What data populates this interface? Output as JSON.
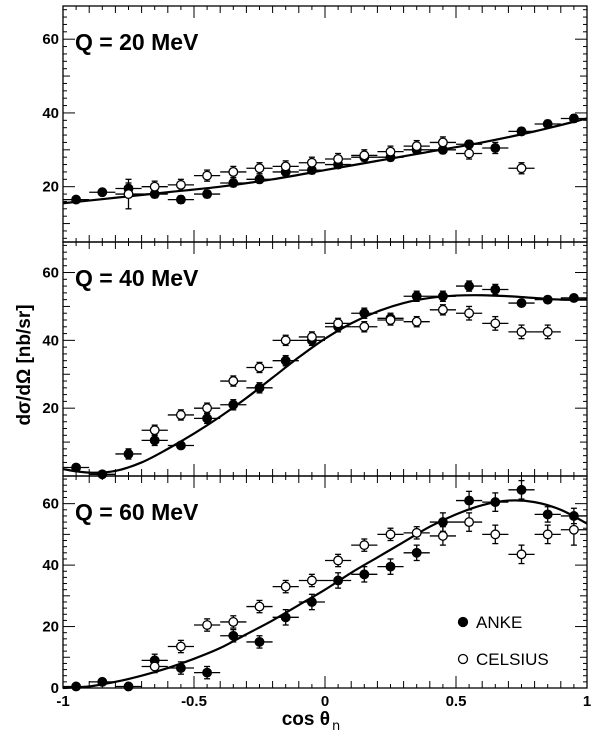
{
  "chart_data": {
    "type": "scatter",
    "xlabel": "cos θ",
    "xlabel_sub": "n",
    "ylabel": "dσ/dΩ [nb/sr]",
    "xlim": [
      -1,
      1
    ],
    "x_ticks": [
      -1,
      -0.5,
      0,
      0.5,
      1
    ],
    "x_tick_labels": [
      "-1",
      "-0.5",
      "0",
      "0.5",
      "1"
    ],
    "legend": {
      "position": "bottom-right",
      "entries": [
        "ANKE",
        "CELSIUS"
      ]
    },
    "grid": false,
    "panels": [
      {
        "label": "Q = 20 MeV",
        "ylim": [
          5,
          69
        ],
        "y_ticks": [
          20,
          40,
          60
        ],
        "series": [
          {
            "name": "ANKE",
            "marker": "filled-circle",
            "x": [
              -0.95,
              -0.85,
              -0.75,
              -0.65,
              -0.55,
              -0.45,
              -0.35,
              -0.25,
              -0.15,
              -0.05,
              0.05,
              0.15,
              0.25,
              0.35,
              0.45,
              0.55,
              0.65,
              0.75,
              0.85,
              0.95
            ],
            "y": [
              16.5,
              18.5,
              19.5,
              18,
              16.5,
              18,
              21,
              22,
              24,
              24.5,
              26,
              28,
              28,
              30,
              30,
              31.5,
              30.5,
              35,
              37,
              38.5
            ],
            "yerr": [
              0.8,
              0.8,
              1.5,
              1,
              1,
              1,
              1,
              1,
              1,
              1,
              1,
              1,
              1,
              1,
              1,
              1,
              1.5,
              1,
              1,
              1
            ]
          },
          {
            "name": "CELSIUS",
            "marker": "open-circle",
            "x": [
              -0.75,
              -0.65,
              -0.55,
              -0.45,
              -0.35,
              -0.25,
              -0.15,
              -0.05,
              0.05,
              0.15,
              0.25,
              0.35,
              0.45,
              0.55,
              0.75
            ],
            "y": [
              18,
              20,
              20.5,
              23,
              24,
              25,
              25.5,
              26.5,
              27.5,
              28.5,
              29.5,
              31,
              32,
              29,
              25
            ],
            "yerr": [
              4,
              1.5,
              1.5,
              1.5,
              1.5,
              1.5,
              1.5,
              1.5,
              1.5,
              1.5,
              1.5,
              1.5,
              1.5,
              1.5,
              1.5
            ]
          }
        ],
        "fit": {
          "x": [
            -1,
            -0.8,
            -0.6,
            -0.4,
            -0.2,
            0,
            0.2,
            0.4,
            0.6,
            0.8,
            1
          ],
          "y": [
            15.5,
            17,
            18.5,
            20,
            22,
            24.5,
            27,
            29.5,
            32,
            35,
            38.5
          ]
        }
      },
      {
        "label": "Q = 40 MeV",
        "ylim": [
          0,
          69
        ],
        "y_ticks": [
          20,
          40,
          60
        ],
        "series": [
          {
            "name": "ANKE",
            "marker": "filled-circle",
            "x": [
              -0.95,
              -0.85,
              -0.75,
              -0.65,
              -0.55,
              -0.45,
              -0.35,
              -0.25,
              -0.15,
              -0.05,
              0.05,
              0.15,
              0.25,
              0.35,
              0.45,
              0.55,
              0.65,
              0.75,
              0.85,
              0.95
            ],
            "y": [
              2.5,
              0.5,
              6.5,
              10.5,
              9,
              17,
              21,
              26,
              34,
              40,
              44,
              48,
              46.5,
              53,
              53,
              56,
              55,
              51,
              52,
              52.5
            ],
            "yerr": [
              0.8,
              0.8,
              1.5,
              1.5,
              1,
              1.5,
              1.5,
              1.5,
              1.5,
              1.5,
              1.5,
              1.5,
              1.5,
              1.5,
              1.5,
              1.5,
              1.5,
              1,
              1,
              1
            ]
          },
          {
            "name": "CELSIUS",
            "marker": "open-circle",
            "x": [
              -0.65,
              -0.55,
              -0.45,
              -0.35,
              -0.25,
              -0.15,
              -0.05,
              0.05,
              0.15,
              0.25,
              0.35,
              0.45,
              0.55,
              0.65,
              0.75,
              0.85
            ],
            "y": [
              13.5,
              18,
              20,
              28,
              32,
              40,
              41,
              45,
              44,
              46,
              45.5,
              49,
              48,
              45,
              42.5,
              42.5
            ],
            "yerr": [
              1.5,
              1.5,
              1.5,
              1.5,
              1.5,
              1.5,
              1.5,
              1.5,
              1.5,
              1.5,
              1.5,
              1.5,
              2,
              2,
              2,
              2
            ]
          }
        ],
        "fit": {
          "x": [
            -1,
            -0.9,
            -0.8,
            -0.7,
            -0.6,
            -0.5,
            -0.4,
            -0.3,
            -0.2,
            -0.1,
            0,
            0.1,
            0.2,
            0.3,
            0.4,
            0.5,
            0.6,
            0.7,
            0.8,
            0.9,
            1
          ],
          "y": [
            2,
            1,
            1.5,
            4,
            8,
            12.5,
            17.5,
            23,
            29,
            35,
            40.5,
            45,
            48.5,
            51,
            52.5,
            53.2,
            53.3,
            53,
            52.5,
            52,
            52
          ]
        }
      },
      {
        "label": "Q = 60 MeV",
        "ylim": [
          0,
          69
        ],
        "y_ticks": [
          0,
          20,
          40,
          60
        ],
        "series": [
          {
            "name": "ANKE",
            "marker": "filled-circle",
            "x": [
              -0.95,
              -0.85,
              -0.75,
              -0.65,
              -0.55,
              -0.45,
              -0.35,
              -0.25,
              -0.15,
              -0.05,
              0.05,
              0.15,
              0.25,
              0.35,
              0.45,
              0.55,
              0.65,
              0.75,
              0.85,
              0.95
            ],
            "y": [
              0.5,
              2,
              0.5,
              9,
              6.5,
              5,
              17,
              15,
              23,
              28,
              35,
              37,
              39.5,
              44,
              54,
              61,
              60.5,
              64.5,
              56.5,
              56
            ],
            "yerr": [
              0.5,
              0.8,
              0.8,
              2,
              2,
              2,
              2,
              2,
              2.5,
              2.5,
              2.5,
              2.5,
              2.5,
              2.5,
              3,
              3,
              3,
              3,
              2.5,
              2.5
            ]
          },
          {
            "name": "CELSIUS",
            "marker": "open-circle",
            "x": [
              -0.65,
              -0.55,
              -0.45,
              -0.35,
              -0.25,
              -0.15,
              -0.05,
              0.05,
              0.15,
              0.25,
              0.35,
              0.45,
              0.55,
              0.65,
              0.75,
              0.85,
              0.95
            ],
            "y": [
              7,
              13.5,
              20.5,
              21.5,
              26.5,
              33,
              35,
              41.5,
              46.5,
              50,
              50.5,
              49.5,
              54,
              50,
              43.5,
              50,
              51.5
            ],
            "yerr": [
              2,
              2,
              2,
              2,
              2,
              2,
              2,
              2,
              2,
              2,
              2,
              3,
              3,
              3,
              3,
              3,
              5
            ]
          }
        ],
        "fit": {
          "x": [
            -1,
            -0.9,
            -0.8,
            -0.7,
            -0.6,
            -0.5,
            -0.4,
            -0.3,
            -0.2,
            -0.1,
            0,
            0.1,
            0.2,
            0.3,
            0.4,
            0.5,
            0.6,
            0.7,
            0.8,
            0.9,
            1
          ],
          "y": [
            0,
            0.5,
            2,
            4,
            6.5,
            9.5,
            13,
            17.5,
            22,
            27,
            32,
            37.5,
            42.5,
            47.5,
            52.5,
            56.5,
            59.5,
            61,
            60.5,
            58,
            53.5
          ]
        }
      }
    ]
  },
  "colors": {
    "ink": "#000000",
    "background": "#ffffff"
  }
}
